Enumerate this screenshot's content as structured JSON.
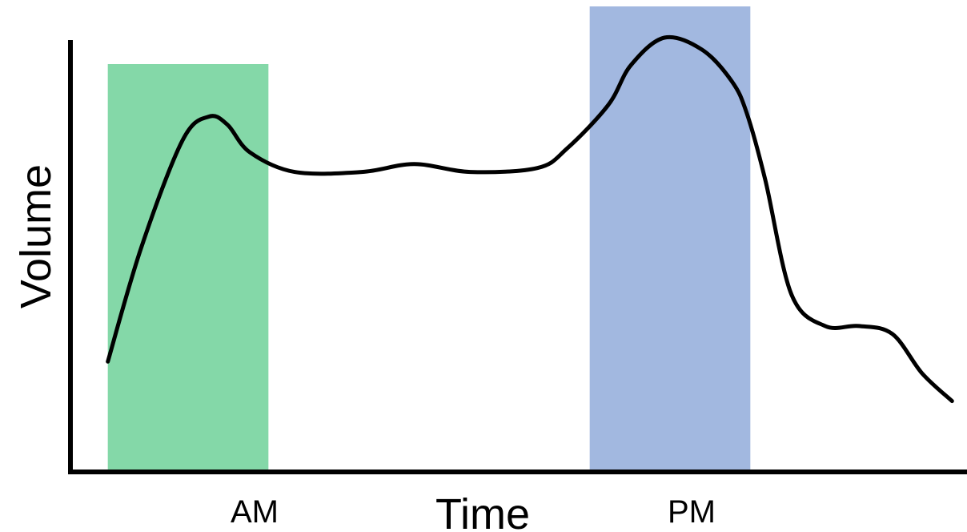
{
  "chart_data": {
    "type": "line",
    "title": "",
    "xlabel": "Time",
    "ylabel": "Volume",
    "grid": false,
    "legend": "none",
    "xlim": [
      0,
      24
    ],
    "ylim": [
      0,
      100
    ],
    "highlight_bands": [
      {
        "label": "AM",
        "x": [
          1.0,
          5.3
        ],
        "color": "#84d8a8"
      },
      {
        "label": "PM",
        "x": [
          13.9,
          18.2
        ],
        "color": "#a2b8e0"
      }
    ],
    "series": [
      {
        "color": "#000000",
        "x": [
          1.0,
          1.9,
          3.0,
          3.7,
          4.2,
          4.8,
          6.0,
          7.8,
          9.2,
          10.7,
          12.5,
          13.3,
          14.4,
          15.0,
          15.9,
          16.9,
          17.7,
          18.1,
          18.6,
          19.3,
          20.2,
          21.1,
          22.0,
          22.8,
          23.6
        ],
        "y": [
          18,
          47,
          74,
          80,
          78,
          71,
          66,
          66,
          68,
          66,
          67,
          72,
          83,
          93,
          100,
          97,
          89,
          81,
          64,
          35,
          27,
          27,
          25,
          15,
          8
        ]
      }
    ]
  },
  "colors": {
    "axis": "#000000",
    "am_band": "#84d8a8",
    "pm_band": "#a2b8e0",
    "line": "#000000"
  }
}
